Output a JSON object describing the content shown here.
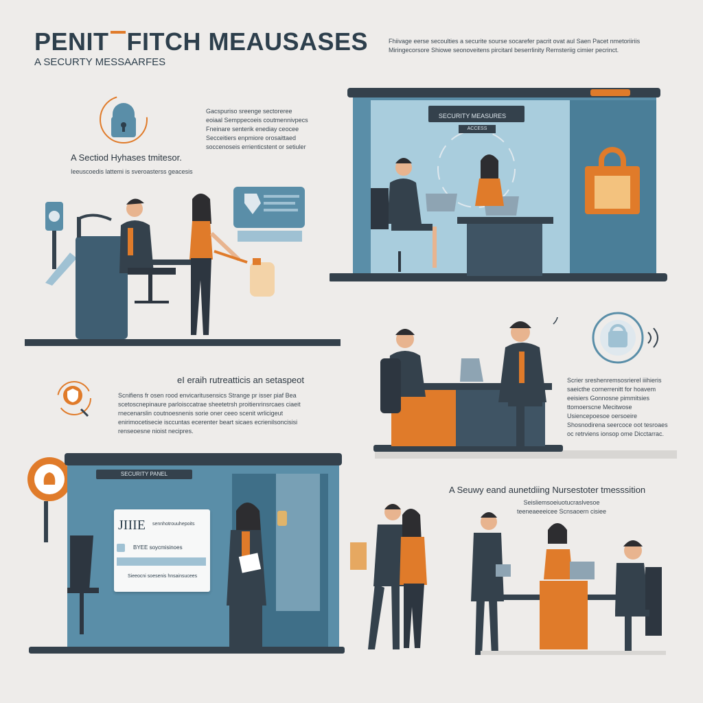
{
  "header": {
    "title_part1": "PENIT",
    "title_part2": "FITCH",
    "title_part3": "MEAUSASES",
    "subtitle": "A SECURTY MESSAARFES",
    "intro_text": "Fhiivage eerse secoulties a securite sourse socarefer pacrit ovat aul Saen Pacet nmetoriiriis Miringecorsore Shiowe seonoveitens pircitanl beserrlinity Remsteriig cimier pecrinct."
  },
  "section1": {
    "caption": "A Sectiod Hyhases tmitesor.",
    "caption_sub": "Ieeuscoedis lattemi is sveroasterss geacesis",
    "side_text": "Gacspuriso sreenge sectoreree eoiaal Semppecoeis coutmennivpecs Fneinare senterik enediay ceocee Secceitiers enpmiore orosaittaed soccenoseis errienticstent or setiuler"
  },
  "section2": {
    "screen_label": "SECURITY MEASURES",
    "screen_badge": "ACCESS"
  },
  "section3": {
    "caption": "eI eraih rutreatticis an setaspeot",
    "body_text": "Scnifiens fr osen rood envicaritusensics Strange pr isser piaf Bea scetoscnepinaure parloisccatrae sheetetrsh proitienrinsrcaes ciaeit rnecenarslin coutnoesnenis sorie oner ceeo scenit wrlicigeut enirimocetisecie isccuntas ecerenter beart sicaes ecrienilsoncisisi renseoesne nioist necipres."
  },
  "section4": {
    "side_text": "Scrier sreshenremsosrierel iiihieris saeicthe cornerrenitt for hoavem eeisiers Gonnosne pimmitsies ttomoerscne Mecitwose Usiencepoesoe oersoeire Shosnodirena seercoce oot tesroaes oc retrviens ionsop ome Dicctarrac."
  },
  "section5": {
    "screen_label": "SECURITY PANEL",
    "login_heading": "JIIIE",
    "login_hint": "sennhotrouuhepoits",
    "row_label": "BYEE soycmisinoes",
    "footer_text": "Sieeocni soesenis hnsainsucees",
    "caption": "A Seuwy eand aunetdiing Nursestoter tmesssition",
    "caption_sub": "Seisliemsoeiuotucraslvesoe teeneaeeeicee Scnsaoern cisiee"
  },
  "colors": {
    "background": "#eeecea",
    "teal": "#5a8ea8",
    "dark_slate": "#34414c",
    "orange": "#e07b2a"
  },
  "icons": [
    "padlock-icon",
    "shield-icon",
    "keyhole-icon",
    "fingerprint-lock-icon"
  ]
}
